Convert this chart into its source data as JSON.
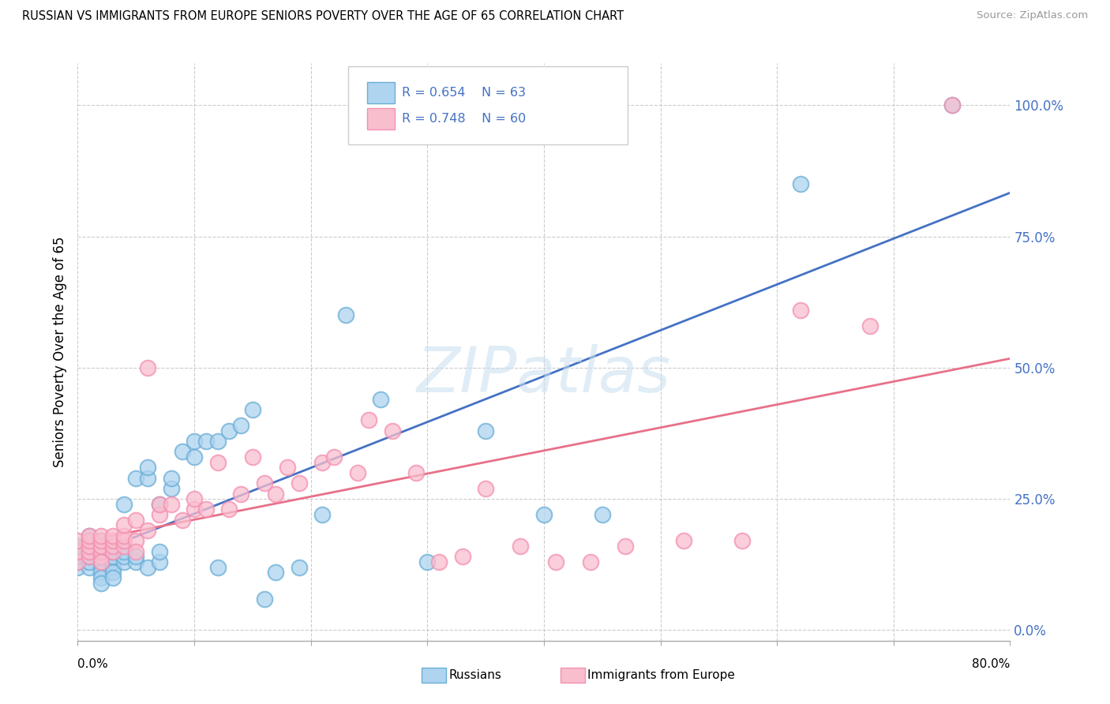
{
  "title": "RUSSIAN VS IMMIGRANTS FROM EUROPE SENIORS POVERTY OVER THE AGE OF 65 CORRELATION CHART",
  "source": "Source: ZipAtlas.com",
  "ylabel": "Seniors Poverty Over the Age of 65",
  "watermark": "ZIPatlas",
  "series1_name": "Russians",
  "series1_R": "0.654",
  "series1_N": "63",
  "series1_face_color": "#AED4F0",
  "series1_edge_color": "#6AAED6",
  "series1_line_color": "#4472C4",
  "series2_name": "Immigrants from Europe",
  "series2_R": "0.748",
  "series2_N": "60",
  "series2_face_color": "#F9BECE",
  "series2_edge_color": "#F48FB1",
  "series2_line_color": "#E8708A",
  "ytick_labels": [
    "0.0%",
    "25.0%",
    "50.0%",
    "75.0%",
    "100.0%"
  ],
  "ytick_values": [
    0.0,
    0.25,
    0.5,
    0.75,
    1.0
  ],
  "xlim": [
    0.0,
    0.8
  ],
  "ylim": [
    -0.02,
    1.08
  ],
  "russians_x": [
    0.0,
    0.0,
    0.0,
    0.0,
    0.0,
    0.01,
    0.01,
    0.01,
    0.01,
    0.01,
    0.01,
    0.01,
    0.02,
    0.02,
    0.02,
    0.02,
    0.02,
    0.02,
    0.02,
    0.02,
    0.02,
    0.03,
    0.03,
    0.03,
    0.03,
    0.03,
    0.03,
    0.04,
    0.04,
    0.04,
    0.04,
    0.05,
    0.05,
    0.05,
    0.06,
    0.06,
    0.06,
    0.07,
    0.07,
    0.07,
    0.08,
    0.08,
    0.09,
    0.1,
    0.1,
    0.11,
    0.12,
    0.12,
    0.13,
    0.14,
    0.15,
    0.16,
    0.17,
    0.19,
    0.21,
    0.23,
    0.26,
    0.3,
    0.35,
    0.4,
    0.45,
    0.62,
    0.75
  ],
  "russians_y": [
    0.12,
    0.13,
    0.14,
    0.15,
    0.16,
    0.12,
    0.13,
    0.14,
    0.15,
    0.16,
    0.17,
    0.18,
    0.12,
    0.13,
    0.14,
    0.15,
    0.16,
    0.17,
    0.11,
    0.1,
    0.09,
    0.12,
    0.13,
    0.14,
    0.15,
    0.11,
    0.1,
    0.24,
    0.13,
    0.14,
    0.15,
    0.13,
    0.14,
    0.29,
    0.12,
    0.29,
    0.31,
    0.13,
    0.24,
    0.15,
    0.27,
    0.29,
    0.34,
    0.33,
    0.36,
    0.36,
    0.12,
    0.36,
    0.38,
    0.39,
    0.42,
    0.06,
    0.11,
    0.12,
    0.22,
    0.6,
    0.44,
    0.13,
    0.38,
    0.22,
    0.22,
    0.85,
    1.0
  ],
  "europe_x": [
    0.0,
    0.0,
    0.0,
    0.01,
    0.01,
    0.01,
    0.01,
    0.01,
    0.02,
    0.02,
    0.02,
    0.02,
    0.02,
    0.02,
    0.03,
    0.03,
    0.03,
    0.03,
    0.04,
    0.04,
    0.04,
    0.04,
    0.05,
    0.05,
    0.05,
    0.06,
    0.06,
    0.07,
    0.07,
    0.08,
    0.09,
    0.1,
    0.1,
    0.11,
    0.12,
    0.13,
    0.14,
    0.15,
    0.16,
    0.17,
    0.18,
    0.19,
    0.21,
    0.22,
    0.24,
    0.25,
    0.27,
    0.29,
    0.31,
    0.33,
    0.35,
    0.38,
    0.41,
    0.44,
    0.47,
    0.52,
    0.57,
    0.62,
    0.68,
    0.75
  ],
  "europe_y": [
    0.13,
    0.15,
    0.17,
    0.14,
    0.15,
    0.16,
    0.17,
    0.18,
    0.14,
    0.15,
    0.16,
    0.17,
    0.18,
    0.13,
    0.15,
    0.16,
    0.17,
    0.18,
    0.16,
    0.17,
    0.18,
    0.2,
    0.17,
    0.15,
    0.21,
    0.19,
    0.5,
    0.22,
    0.24,
    0.24,
    0.21,
    0.23,
    0.25,
    0.23,
    0.32,
    0.23,
    0.26,
    0.33,
    0.28,
    0.26,
    0.31,
    0.28,
    0.32,
    0.33,
    0.3,
    0.4,
    0.38,
    0.3,
    0.13,
    0.14,
    0.27,
    0.16,
    0.13,
    0.13,
    0.16,
    0.17,
    0.17,
    0.61,
    0.58,
    1.0
  ]
}
